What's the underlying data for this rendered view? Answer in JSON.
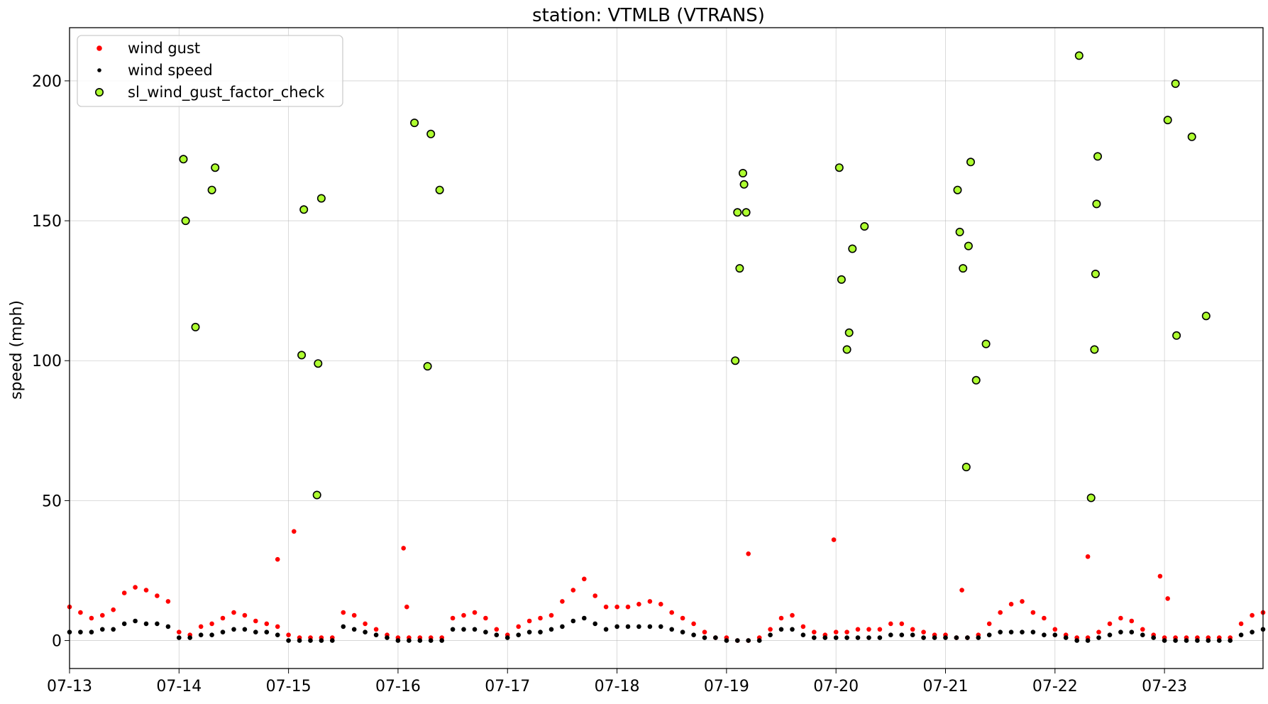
{
  "chart_data": {
    "type": "scatter",
    "title": "station: VTMLB (VTRANS)",
    "xlabel": "",
    "ylabel": "speed (mph)",
    "x_unit": "days after 07-13 00:00",
    "xlim": [
      0,
      10.9
    ],
    "ylim": [
      -10,
      219
    ],
    "grid": true,
    "legend_position": "top-left",
    "x_ticks": [
      {
        "value": 0,
        "label": "07-13"
      },
      {
        "value": 1,
        "label": "07-14"
      },
      {
        "value": 2,
        "label": "07-15"
      },
      {
        "value": 3,
        "label": "07-16"
      },
      {
        "value": 4,
        "label": "07-17"
      },
      {
        "value": 5,
        "label": "07-18"
      },
      {
        "value": 6,
        "label": "07-19"
      },
      {
        "value": 7,
        "label": "07-20"
      },
      {
        "value": 8,
        "label": "07-21"
      },
      {
        "value": 9,
        "label": "07-22"
      },
      {
        "value": 10,
        "label": "07-23"
      }
    ],
    "y_ticks": [
      {
        "value": 0,
        "label": "0"
      },
      {
        "value": 50,
        "label": "50"
      },
      {
        "value": 100,
        "label": "100"
      },
      {
        "value": 150,
        "label": "150"
      },
      {
        "value": 200,
        "label": "200"
      }
    ],
    "series": [
      {
        "name": "wind gust",
        "color": "#ff0000",
        "marker": "dot",
        "note": "dense 5-min samples; represented by regular samples",
        "x": [
          0.0,
          0.1,
          0.2,
          0.3,
          0.4,
          0.5,
          0.6,
          0.7,
          0.8,
          0.9,
          1.0,
          1.1,
          1.2,
          1.3,
          1.4,
          1.5,
          1.6,
          1.7,
          1.8,
          1.9,
          2.0,
          2.1,
          2.2,
          2.3,
          2.4,
          2.5,
          2.6,
          2.7,
          2.8,
          2.9,
          3.0,
          3.1,
          3.2,
          3.3,
          3.4,
          3.5,
          3.6,
          3.7,
          3.8,
          3.9,
          4.0,
          4.1,
          4.2,
          4.3,
          4.4,
          4.5,
          4.6,
          4.7,
          4.8,
          4.9,
          5.0,
          5.1,
          5.2,
          5.3,
          5.4,
          5.5,
          5.6,
          5.7,
          5.8,
          5.9,
          6.0,
          6.1,
          6.2,
          6.3,
          6.4,
          6.5,
          6.6,
          6.7,
          6.8,
          6.9,
          7.0,
          7.1,
          7.2,
          7.3,
          7.4,
          7.5,
          7.6,
          7.7,
          7.8,
          7.9,
          8.0,
          8.1,
          8.2,
          8.3,
          8.4,
          8.5,
          8.6,
          8.7,
          8.8,
          8.9,
          9.0,
          9.1,
          9.2,
          9.3,
          9.4,
          9.5,
          9.6,
          9.7,
          9.8,
          9.9,
          10.0,
          10.1,
          10.2,
          10.3,
          10.4,
          10.5,
          10.6,
          10.7,
          10.8,
          10.9,
          1.9,
          2.05,
          3.05,
          3.08,
          6.2,
          6.98,
          8.15,
          9.3,
          10.03,
          9.96
        ],
        "values": [
          12,
          10,
          8,
          9,
          11,
          17,
          19,
          18,
          16,
          14,
          3,
          2,
          5,
          6,
          8,
          10,
          9,
          7,
          6,
          5,
          2,
          1,
          1,
          1,
          1,
          10,
          9,
          6,
          4,
          2,
          1,
          1,
          1,
          1,
          1,
          8,
          9,
          10,
          8,
          4,
          2,
          5,
          7,
          8,
          9,
          14,
          18,
          22,
          16,
          12,
          12,
          12,
          13,
          14,
          13,
          10,
          8,
          6,
          3,
          1,
          1,
          0,
          0,
          1,
          4,
          8,
          9,
          5,
          3,
          2,
          3,
          3,
          4,
          4,
          4,
          6,
          6,
          4,
          3,
          2,
          2,
          1,
          1,
          2,
          6,
          10,
          13,
          14,
          10,
          8,
          4,
          2,
          1,
          1,
          3,
          6,
          8,
          7,
          4,
          2,
          1,
          1,
          1,
          1,
          1,
          1,
          1,
          6,
          9,
          10,
          29,
          39,
          33,
          12,
          31,
          36,
          18,
          30,
          15,
          23
        ]
      },
      {
        "name": "wind speed",
        "color": "#000000",
        "marker": "dot",
        "note": "dense 5-min samples; represented by regular samples",
        "x": [
          0.0,
          0.1,
          0.2,
          0.3,
          0.4,
          0.5,
          0.6,
          0.7,
          0.8,
          0.9,
          1.0,
          1.1,
          1.2,
          1.3,
          1.4,
          1.5,
          1.6,
          1.7,
          1.8,
          1.9,
          2.0,
          2.1,
          2.2,
          2.3,
          2.4,
          2.5,
          2.6,
          2.7,
          2.8,
          2.9,
          3.0,
          3.1,
          3.2,
          3.3,
          3.4,
          3.5,
          3.6,
          3.7,
          3.8,
          3.9,
          4.0,
          4.1,
          4.2,
          4.3,
          4.4,
          4.5,
          4.6,
          4.7,
          4.8,
          4.9,
          5.0,
          5.1,
          5.2,
          5.3,
          5.4,
          5.5,
          5.6,
          5.7,
          5.8,
          5.9,
          6.0,
          6.1,
          6.2,
          6.3,
          6.4,
          6.5,
          6.6,
          6.7,
          6.8,
          6.9,
          7.0,
          7.1,
          7.2,
          7.3,
          7.4,
          7.5,
          7.6,
          7.7,
          7.8,
          7.9,
          8.0,
          8.1,
          8.2,
          8.3,
          8.4,
          8.5,
          8.6,
          8.7,
          8.8,
          8.9,
          9.0,
          9.1,
          9.2,
          9.3,
          9.4,
          9.5,
          9.6,
          9.7,
          9.8,
          9.9,
          10.0,
          10.1,
          10.2,
          10.3,
          10.4,
          10.5,
          10.6,
          10.7,
          10.8,
          10.9
        ],
        "values": [
          3,
          3,
          3,
          4,
          4,
          6,
          7,
          6,
          6,
          5,
          1,
          1,
          2,
          2,
          3,
          4,
          4,
          3,
          3,
          2,
          0,
          0,
          0,
          0,
          0,
          5,
          4,
          3,
          2,
          1,
          0,
          0,
          0,
          0,
          0,
          4,
          4,
          4,
          3,
          2,
          1,
          2,
          3,
          3,
          4,
          5,
          7,
          8,
          6,
          4,
          5,
          5,
          5,
          5,
          5,
          4,
          3,
          2,
          1,
          1,
          0,
          0,
          0,
          0,
          2,
          4,
          4,
          2,
          1,
          1,
          1,
          1,
          1,
          1,
          1,
          2,
          2,
          2,
          1,
          1,
          1,
          1,
          1,
          1,
          2,
          3,
          3,
          3,
          3,
          2,
          2,
          1,
          0,
          0,
          1,
          2,
          3,
          3,
          2,
          1,
          0,
          0,
          0,
          0,
          0,
          0,
          0,
          2,
          3,
          4
        ]
      },
      {
        "name": "sl_wind_gust_factor_check",
        "color": "#adff2f",
        "edgecolor": "#000000",
        "marker": "circle",
        "x": [
          1.04,
          1.06,
          1.15,
          1.3,
          1.33,
          2.12,
          2.14,
          2.26,
          2.27,
          2.3,
          3.15,
          3.27,
          3.3,
          3.38,
          6.08,
          6.1,
          6.12,
          6.15,
          6.16,
          6.18,
          7.03,
          7.05,
          7.1,
          7.12,
          7.15,
          7.26,
          8.11,
          8.13,
          8.16,
          8.19,
          8.21,
          8.23,
          8.28,
          8.37,
          9.22,
          9.33,
          9.36,
          9.37,
          9.38,
          9.39,
          10.03,
          10.1,
          10.11,
          10.25,
          10.38
        ],
        "values": [
          172,
          150,
          112,
          161,
          169,
          102,
          154,
          52,
          99,
          158,
          185,
          98,
          181,
          161,
          100,
          153,
          133,
          167,
          163,
          153,
          169,
          129,
          104,
          110,
          140,
          148,
          161,
          146,
          133,
          62,
          141,
          171,
          93,
          106,
          209,
          51,
          104,
          131,
          156,
          173,
          186,
          199,
          109,
          180,
          116
        ]
      }
    ]
  }
}
